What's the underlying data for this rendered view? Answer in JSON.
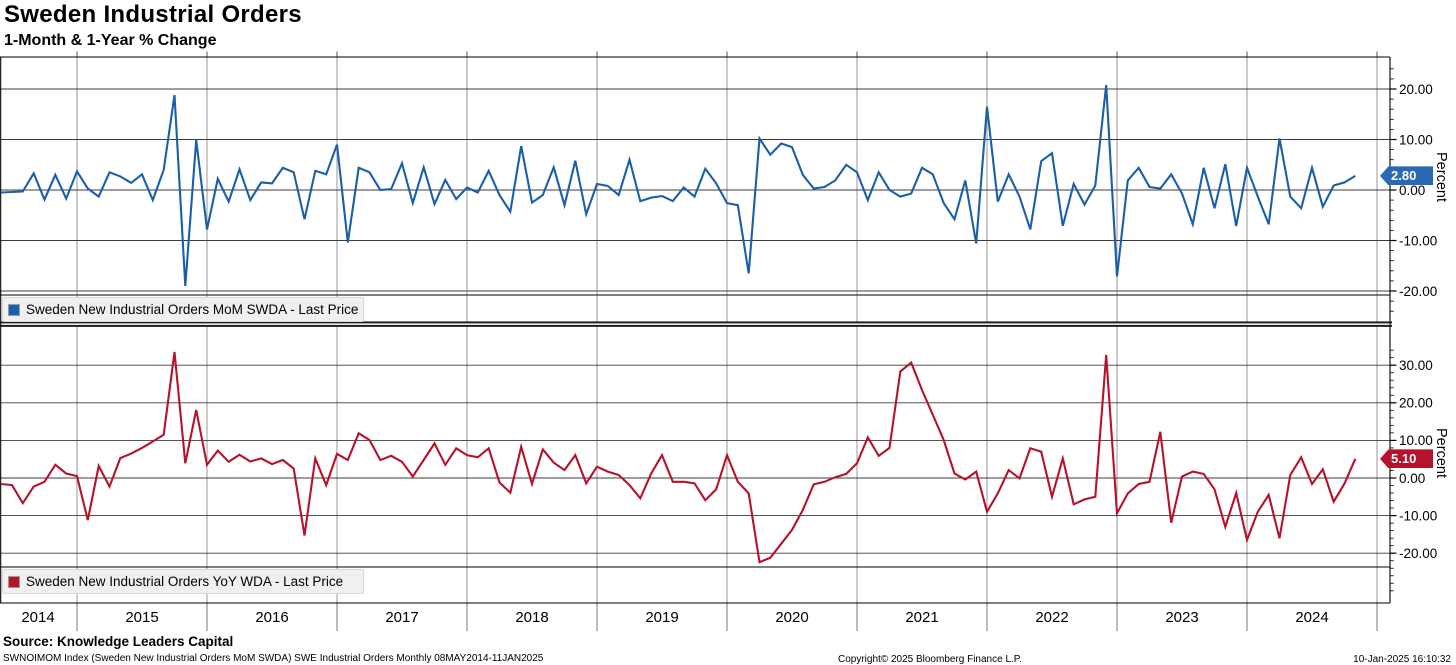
{
  "header": {
    "title": "Sweden Industrial Orders",
    "subtitle": "1-Month & 1-Year % Change"
  },
  "panels": [
    {
      "legend": "Sweden New Industrial Orders MoM SWDA - Last Price",
      "axis_label": "Percent",
      "badge_value": "2.80",
      "color": "#1a5fa8",
      "badge_bg": "#2a6ab5",
      "y_ticks": [
        {
          "value": 20,
          "label": "20.00"
        },
        {
          "value": 10,
          "label": "10.00"
        },
        {
          "value": 0,
          "label": "0.00"
        },
        {
          "value": -10,
          "label": "-10.00"
        },
        {
          "value": -20,
          "label": "-20.00"
        }
      ]
    },
    {
      "legend": "Sweden New Industrial Orders YoY WDA - Last Price",
      "axis_label": "Percent",
      "badge_value": "5.10",
      "color": "#b5122b",
      "badge_bg": "#b5122b",
      "y_ticks": [
        {
          "value": 30,
          "label": "30.00"
        },
        {
          "value": 20,
          "label": "20.00"
        },
        {
          "value": 10,
          "label": "10.00"
        },
        {
          "value": 0,
          "label": "0.00"
        },
        {
          "value": -10,
          "label": "-10.00"
        },
        {
          "value": -20,
          "label": "-20.00"
        }
      ]
    }
  ],
  "x_axis": {
    "year_labels": [
      "2014",
      "2015",
      "2016",
      "2017",
      "2018",
      "2019",
      "2020",
      "2021",
      "2022",
      "2023",
      "2024"
    ]
  },
  "footer": {
    "source": "Source: Knowledge Leaders Capital",
    "description": "SWNOIMOM Index (Sweden New Industrial Orders MoM SWDA) SWE Industrial Orders  Monthly 08MAY2014-11JAN2025",
    "copyright": "Copyright© 2025 Bloomberg Finance L.P.",
    "timestamp": "10-Jan-2025 16:10:32"
  },
  "chart_data": {
    "type": "line",
    "title": "Sweden Industrial Orders",
    "subtitle": "1-Month & 1-Year % Change",
    "frequency": "monthly",
    "x_start": "2014-06",
    "x_end": "2024-11",
    "x_tick_labels": [
      "2014",
      "2015",
      "2016",
      "2017",
      "2018",
      "2019",
      "2020",
      "2021",
      "2022",
      "2023",
      "2024"
    ],
    "grid": true,
    "legend_position": "bottom-left-of-each-panel",
    "series": [
      {
        "name": "Sweden New Industrial Orders MoM SWDA - Last Price",
        "panel": "top",
        "color": "#1a5fa8",
        "ylabel": "Percent",
        "ylim": [
          -22.5,
          26.5
        ],
        "y_gridlines": [
          20,
          10,
          0,
          -10,
          -20
        ],
        "last_price": 2.8,
        "values": [
          -0.5,
          -0.4,
          -0.3,
          3.3,
          -1.9,
          3.0,
          -1.7,
          3.7,
          0.3,
          -1.3,
          3.5,
          2.7,
          1.4,
          3.1,
          -2.0,
          4.0,
          18.8,
          -19.0,
          9.9,
          -7.8,
          2.2,
          -2.3,
          4.1,
          -2.0,
          1.5,
          1.3,
          4.4,
          3.5,
          -5.8,
          3.8,
          3.1,
          9.0,
          -10.4,
          4.4,
          3.5,
          0.0,
          0.2,
          5.3,
          -2.6,
          4.5,
          -2.8,
          2.0,
          -1.8,
          0.5,
          -0.5,
          3.8,
          -1.0,
          -4.3,
          8.7,
          -2.5,
          -1.0,
          4.5,
          -3.0,
          5.8,
          -4.8,
          1.2,
          0.8,
          -1.0,
          6.0,
          -2.2,
          -1.5,
          -1.2,
          -2.2,
          0.5,
          -1.3,
          4.2,
          1.3,
          -2.6,
          -3.0,
          -16.5,
          10.2,
          7.0,
          9.2,
          8.5,
          3.0,
          0.3,
          0.6,
          1.9,
          5.0,
          3.5,
          -2.0,
          3.5,
          0.0,
          -1.3,
          -0.7,
          4.4,
          3.1,
          -2.6,
          -5.8,
          1.9,
          -10.6,
          16.5,
          -2.3,
          3.1,
          -1.3,
          -7.8,
          5.7,
          7.3,
          -7.1,
          1.2,
          -2.9,
          0.9,
          20.8,
          -17.1,
          1.9,
          4.4,
          0.6,
          0.3,
          3.1,
          -0.7,
          -6.8,
          4.4,
          -3.6,
          5.1,
          -7.1,
          4.4,
          -1.3,
          -6.8,
          10.2,
          -1.3,
          -3.6,
          4.4,
          -3.3,
          0.9,
          1.5,
          2.8
        ]
      },
      {
        "name": "Sweden New Industrial Orders YoY WDA - Last Price",
        "panel": "bottom",
        "color": "#b5122b",
        "ylabel": "Percent",
        "ylim": [
          -32,
          40
        ],
        "y_gridlines": [
          30,
          20,
          10,
          0,
          -10,
          -20
        ],
        "last_price": 5.1,
        "values": [
          -1.6,
          -1.9,
          -6.7,
          -2.3,
          -1.0,
          3.5,
          1.2,
          0.5,
          -11.2,
          3.2,
          -2.3,
          5.3,
          6.5,
          8.0,
          9.7,
          11.5,
          33.5,
          3.9,
          18.1,
          3.5,
          7.3,
          4.3,
          6.2,
          4.4,
          5.2,
          3.7,
          4.8,
          2.5,
          -15.3,
          5.2,
          -1.9,
          6.4,
          4.8,
          11.9,
          10.1,
          4.8,
          5.9,
          4.3,
          0.4,
          4.8,
          9.2,
          3.5,
          7.9,
          6.1,
          5.5,
          7.9,
          -1.2,
          -3.9,
          8.3,
          -1.6,
          7.6,
          4.1,
          2.1,
          6.1,
          -1.4,
          3.0,
          1.7,
          0.8,
          -1.9,
          -5.4,
          1.2,
          6.1,
          -1.0,
          -1.0,
          -1.4,
          -5.9,
          -3.0,
          6.1,
          -1.0,
          -4.1,
          -22.4,
          -21.2,
          -17.5,
          -13.8,
          -8.5,
          -1.7,
          -1.0,
          0.2,
          1.1,
          3.9,
          10.8,
          5.9,
          8.0,
          28.3,
          30.7,
          23.4,
          16.8,
          10.1,
          1.2,
          -0.4,
          1.7,
          -9.0,
          -4.1,
          2.1,
          -0.1,
          7.9,
          7.0,
          -5.0,
          5.2,
          -7.0,
          -5.7,
          -5.0,
          32.7,
          -9.4,
          -4.1,
          -1.6,
          -1.0,
          12.3,
          -11.9,
          0.4,
          1.7,
          1.1,
          -3.0,
          -13.0,
          -4.0,
          -16.5,
          -9.0,
          -4.5,
          -16.0,
          0.8,
          5.5,
          -1.6,
          2.3,
          -6.3,
          -1.5,
          5.1
        ]
      }
    ]
  }
}
